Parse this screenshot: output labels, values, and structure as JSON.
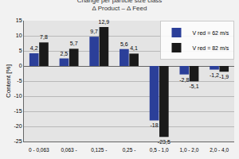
{
  "chart_data": {
    "type": "bar",
    "title": "Change per particle size class",
    "subtitle": "Δ Product – Δ Feed",
    "y_label": "Content [%]",
    "categories": [
      "0 - 0,063",
      "0,063 -",
      "0,125 -",
      "0,25 -",
      "0,5 - 1,0",
      "1,0 - 2,0",
      "2,0 - 4,0"
    ],
    "series": [
      {
        "name": "V red = 62 m/s",
        "color": "#2b3f99",
        "values": [
          4.2,
          2.5,
          9.7,
          5.6,
          -18,
          -2.8,
          -1.2
        ],
        "value_labels": [
          "4,2",
          "2,5",
          "9,7",
          "5,6",
          "-18",
          "-2,8",
          "-1,2"
        ]
      },
      {
        "name": "V red = 82 m/s",
        "color": "#1a1a1a",
        "values": [
          7.8,
          5.7,
          12.9,
          4.1,
          -23.5,
          -5.1,
          -1.9
        ],
        "value_labels": [
          "7,8",
          "5,7",
          "12,9",
          "4,1",
          "-23,5",
          "-5,1",
          "-1,9"
        ]
      }
    ],
    "ylim": [
      -25,
      15
    ],
    "yticks": [
      -25,
      -20,
      -15,
      -10,
      -5,
      0,
      5,
      10,
      15
    ],
    "grid": true,
    "legend": "top-right",
    "data_labels": true
  }
}
